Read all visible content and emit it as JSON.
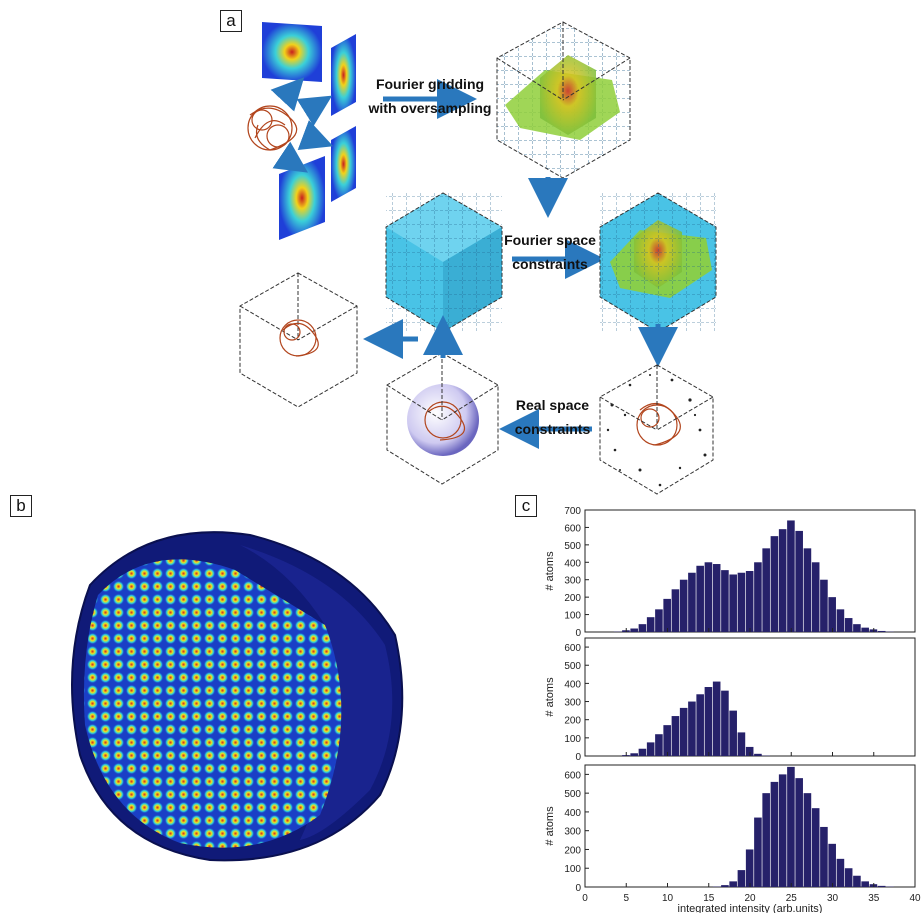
{
  "panels": {
    "a": "a",
    "b": "b",
    "c": "c"
  },
  "flow": {
    "step1_line1": "Fourier gridding",
    "step1_line2": "with oversampling",
    "step2_line1": "Fourier space",
    "step2_line2": "constraints",
    "step3_line1": "Real space",
    "step3_line2": "constraints"
  },
  "colors": {
    "arrow": "#2a78bd",
    "bars": "#26216a",
    "volume_blue": "#47c5ea",
    "volume_green": "#9bd33a"
  },
  "chart_data": [
    {
      "type": "bar",
      "ylabel": "# atoms",
      "xlim": [
        0,
        40
      ],
      "ylim": [
        0,
        700
      ],
      "yticks": [
        0,
        100,
        200,
        300,
        400,
        500,
        600,
        700
      ],
      "x": [
        4,
        5,
        6,
        7,
        8,
        9,
        10,
        11,
        12,
        13,
        14,
        15,
        16,
        17,
        18,
        19,
        20,
        21,
        22,
        23,
        24,
        25,
        26,
        27,
        28,
        29,
        30,
        31,
        32,
        33,
        34,
        35,
        36,
        37
      ],
      "values": [
        2,
        10,
        20,
        45,
        85,
        130,
        190,
        245,
        300,
        340,
        380,
        400,
        390,
        355,
        330,
        340,
        350,
        400,
        480,
        550,
        590,
        640,
        580,
        480,
        400,
        300,
        200,
        130,
        80,
        45,
        25,
        15,
        6,
        2
      ]
    },
    {
      "type": "bar",
      "ylabel": "# atoms",
      "xlim": [
        0,
        40
      ],
      "ylim": [
        0,
        650
      ],
      "yticks": [
        0,
        100,
        200,
        300,
        400,
        500,
        600
      ],
      "x": [
        5,
        6,
        7,
        8,
        9,
        10,
        11,
        12,
        13,
        14,
        15,
        16,
        17,
        18,
        19,
        20,
        21,
        22
      ],
      "values": [
        5,
        15,
        40,
        75,
        120,
        170,
        220,
        265,
        300,
        340,
        380,
        410,
        360,
        250,
        130,
        50,
        12,
        2
      ]
    },
    {
      "type": "bar",
      "ylabel": "# atoms",
      "xlabel": "integrated intensity (arb.units)",
      "xlim": [
        0,
        40
      ],
      "ylim": [
        0,
        650
      ],
      "yticks": [
        0,
        100,
        200,
        300,
        400,
        500,
        600
      ],
      "xticks": [
        0,
        5,
        10,
        15,
        20,
        25,
        30,
        35,
        40
      ],
      "x": [
        16,
        17,
        18,
        19,
        20,
        21,
        22,
        23,
        24,
        25,
        26,
        27,
        28,
        29,
        30,
        31,
        32,
        33,
        34,
        35,
        36,
        37
      ],
      "values": [
        2,
        10,
        30,
        90,
        200,
        370,
        500,
        560,
        600,
        640,
        580,
        500,
        420,
        320,
        230,
        150,
        100,
        60,
        30,
        15,
        6,
        2
      ]
    }
  ]
}
